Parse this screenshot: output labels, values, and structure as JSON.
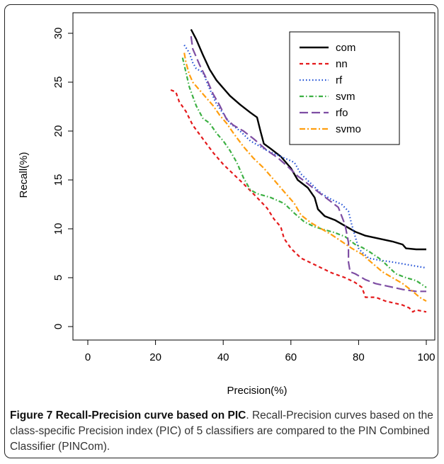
{
  "chart_data": {
    "type": "line",
    "xlabel": "Precision(%)",
    "ylabel": "Recall(%)",
    "xlim": [
      0,
      100
    ],
    "ylim": [
      0,
      30
    ],
    "xticks": [
      "0",
      "20",
      "40",
      "60",
      "80",
      "100"
    ],
    "yticks": [
      "0",
      "5",
      "10",
      "15",
      "20",
      "25",
      "30"
    ],
    "legend_position": "top-right",
    "grid": false,
    "series": [
      {
        "name": "com",
        "color": "#000000",
        "dash": "solid",
        "points": [
          [
            30.5,
            30.4
          ],
          [
            32,
            29.4
          ],
          [
            34,
            27.8
          ],
          [
            36,
            26.3
          ],
          [
            38,
            25.2
          ],
          [
            40,
            24.4
          ],
          [
            42,
            23.6
          ],
          [
            45,
            22.7
          ],
          [
            48,
            21.9
          ],
          [
            50,
            21.4
          ],
          [
            51,
            20.0
          ],
          [
            52,
            18.7
          ],
          [
            54,
            18.2
          ],
          [
            57,
            17.4
          ],
          [
            60,
            16.2
          ],
          [
            62,
            15.0
          ],
          [
            65,
            14.2
          ],
          [
            67,
            13.2
          ],
          [
            68,
            12.0
          ],
          [
            70,
            11.3
          ],
          [
            73,
            10.9
          ],
          [
            76,
            10.3
          ],
          [
            79,
            9.7
          ],
          [
            82,
            9.3
          ],
          [
            86,
            9.0
          ],
          [
            90,
            8.7
          ],
          [
            93,
            8.4
          ],
          [
            94,
            8.0
          ],
          [
            97,
            7.9
          ],
          [
            100,
            7.9
          ]
        ]
      },
      {
        "name": "nn",
        "color": "#e41a1c",
        "dash": "5,4",
        "points": [
          [
            24.5,
            24.2
          ],
          [
            26,
            24.0
          ],
          [
            27,
            23.0
          ],
          [
            29,
            22.0
          ],
          [
            31,
            20.6
          ],
          [
            34,
            19.2
          ],
          [
            37,
            17.8
          ],
          [
            40,
            16.6
          ],
          [
            43,
            15.6
          ],
          [
            46,
            14.6
          ],
          [
            50,
            13.2
          ],
          [
            53,
            12.1
          ],
          [
            55,
            11.0
          ],
          [
            57,
            10.2
          ],
          [
            58,
            9.0
          ],
          [
            60,
            8.0
          ],
          [
            63,
            7.0
          ],
          [
            66,
            6.5
          ],
          [
            69,
            6.0
          ],
          [
            72,
            5.5
          ],
          [
            76,
            5.0
          ],
          [
            79,
            4.5
          ],
          [
            81,
            4.0
          ],
          [
            82,
            3.0
          ],
          [
            85,
            3.0
          ],
          [
            88,
            2.6
          ],
          [
            93,
            2.2
          ],
          [
            95,
            1.9
          ],
          [
            96,
            1.5
          ],
          [
            97,
            1.7
          ],
          [
            100,
            1.5
          ]
        ]
      },
      {
        "name": "rf",
        "color": "#1f4fd6",
        "dash": "1.5,3",
        "points": [
          [
            28.5,
            28.8
          ],
          [
            30,
            28.0
          ],
          [
            31,
            27.0
          ],
          [
            32,
            26.4
          ],
          [
            34,
            26.0
          ],
          [
            36,
            24.3
          ],
          [
            38,
            22.8
          ],
          [
            40,
            21.8
          ],
          [
            42,
            20.8
          ],
          [
            45,
            20.0
          ],
          [
            48,
            19.0
          ],
          [
            50,
            18.6
          ],
          [
            53,
            18.0
          ],
          [
            57,
            17.4
          ],
          [
            61,
            16.8
          ],
          [
            63,
            15.6
          ],
          [
            66,
            14.6
          ],
          [
            69,
            13.6
          ],
          [
            72,
            13.0
          ],
          [
            75,
            12.5
          ],
          [
            77,
            11.8
          ],
          [
            78,
            10.4
          ],
          [
            79,
            9.2
          ],
          [
            80,
            8.0
          ],
          [
            81,
            7.6
          ],
          [
            83,
            7.0
          ],
          [
            86,
            6.8
          ],
          [
            90,
            6.6
          ],
          [
            95,
            6.3
          ],
          [
            100,
            6.0
          ]
        ]
      },
      {
        "name": "svm",
        "color": "#3cb043",
        "dash": "6,3,1.5,3",
        "points": [
          [
            28,
            27.5
          ],
          [
            29,
            26.0
          ],
          [
            30,
            24.5
          ],
          [
            32,
            22.6
          ],
          [
            34,
            21.3
          ],
          [
            36,
            20.8
          ],
          [
            38,
            19.8
          ],
          [
            40,
            19.0
          ],
          [
            42,
            18.0
          ],
          [
            44,
            16.8
          ],
          [
            46,
            15.2
          ],
          [
            48,
            14.0
          ],
          [
            50,
            13.6
          ],
          [
            54,
            13.2
          ],
          [
            58,
            12.6
          ],
          [
            61,
            11.6
          ],
          [
            64,
            10.7
          ],
          [
            67,
            10.2
          ],
          [
            70,
            9.9
          ],
          [
            73,
            9.6
          ],
          [
            76,
            9.2
          ],
          [
            79,
            8.4
          ],
          [
            81,
            8.1
          ],
          [
            83,
            7.7
          ],
          [
            86,
            7.0
          ],
          [
            88,
            6.4
          ],
          [
            91,
            5.4
          ],
          [
            94,
            5.0
          ],
          [
            97,
            4.7
          ],
          [
            100,
            4.0
          ]
        ]
      },
      {
        "name": "rfo",
        "color": "#7e4ea3",
        "dash": "12,5",
        "points": [
          [
            30.5,
            29.7
          ],
          [
            31,
            28.4
          ],
          [
            32,
            27.6
          ],
          [
            33,
            26.8
          ],
          [
            35,
            25.4
          ],
          [
            37,
            23.8
          ],
          [
            39,
            22.6
          ],
          [
            41,
            21.2
          ],
          [
            43,
            20.6
          ],
          [
            46,
            20.0
          ],
          [
            49,
            19.2
          ],
          [
            51,
            18.6
          ],
          [
            53,
            18.0
          ],
          [
            56,
            17.3
          ],
          [
            59,
            16.4
          ],
          [
            62,
            15.4
          ],
          [
            65,
            14.6
          ],
          [
            68,
            13.8
          ],
          [
            71,
            13.0
          ],
          [
            74,
            12.2
          ],
          [
            76,
            10.4
          ],
          [
            77,
            8.6
          ],
          [
            77,
            6.6
          ],
          [
            77.5,
            5.6
          ],
          [
            79,
            5.4
          ],
          [
            82,
            4.8
          ],
          [
            85,
            4.4
          ],
          [
            89,
            4.1
          ],
          [
            93,
            3.8
          ],
          [
            97,
            3.6
          ],
          [
            100,
            3.6
          ]
        ]
      },
      {
        "name": "svmo",
        "color": "#ff9e0f",
        "dash": "8,3,2,3",
        "points": [
          [
            28.5,
            28.0
          ],
          [
            29,
            27.0
          ],
          [
            30,
            25.8
          ],
          [
            31,
            25.0
          ],
          [
            33,
            24.2
          ],
          [
            35,
            23.4
          ],
          [
            37,
            22.6
          ],
          [
            39,
            21.6
          ],
          [
            41,
            20.8
          ],
          [
            43,
            19.8
          ],
          [
            46,
            18.4
          ],
          [
            49,
            17.2
          ],
          [
            52,
            16.2
          ],
          [
            55,
            15.0
          ],
          [
            58,
            13.8
          ],
          [
            61,
            12.6
          ],
          [
            63,
            11.4
          ],
          [
            66,
            10.6
          ],
          [
            69,
            10.0
          ],
          [
            72,
            9.4
          ],
          [
            75,
            8.7
          ],
          [
            78,
            8.0
          ],
          [
            81,
            7.4
          ],
          [
            84,
            6.5
          ],
          [
            87,
            5.6
          ],
          [
            90,
            5.0
          ],
          [
            93,
            4.4
          ],
          [
            96,
            3.6
          ],
          [
            98,
            3.0
          ],
          [
            100,
            2.6
          ]
        ]
      }
    ]
  },
  "caption": {
    "title": "Figure 7 Recall-Precision curve based on PIC",
    "text": ". Recall-Precision curves based on the class-specific Precision index (PIC) of 5 classifiers are compared to the PIN Combined Classifier (PINCom)."
  }
}
